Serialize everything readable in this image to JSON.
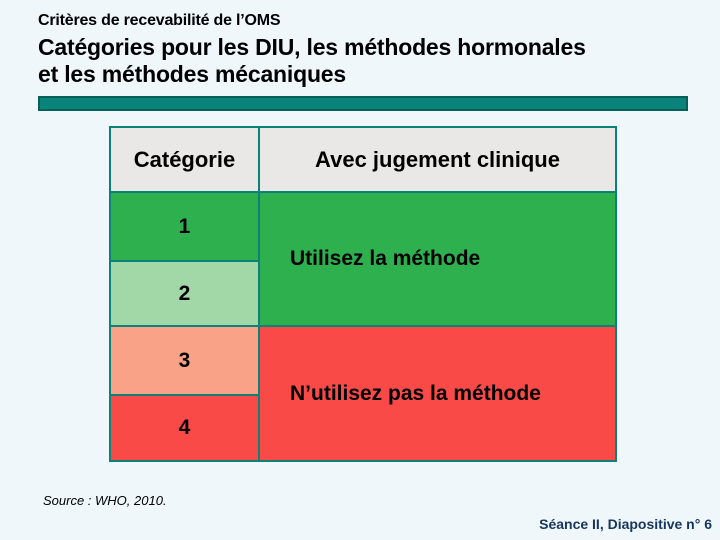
{
  "slide": {
    "suptitle": "Critères de recevabilité de l’OMS",
    "title_lines": [
      "Catégories pour les DIU, les méthodes hormonales",
      "et les méthodes mécaniques"
    ],
    "source": "Source : WHO, 2010.",
    "footer": "Séance II, Diapositive n° 6"
  },
  "table": {
    "header": {
      "category": "Catégorie",
      "judgment": "Avec jugement clinique"
    },
    "categories": [
      {
        "label": "1",
        "color": "#2FB04F"
      },
      {
        "label": "2",
        "color": "#A2D7A8"
      },
      {
        "label": "3",
        "color": "#F9A287"
      },
      {
        "label": "4",
        "color": "#F94A47"
      }
    ],
    "judgments": [
      {
        "label": "Utilisez la méthode",
        "spans_categories": "1–2",
        "color": "#2FB04F"
      },
      {
        "label": "N’utilisez pas la méthode",
        "spans_categories": "3–4",
        "color": "#F94A47"
      }
    ]
  },
  "colors": {
    "page_background": "#EFF7FA",
    "divider_bar": "#0A837B",
    "divider_bar_border": "#045F59",
    "table_border": "#0B8178",
    "header_cell_bg": "#E9E8E6",
    "text": "#000000",
    "footer_text": "#17365D"
  }
}
